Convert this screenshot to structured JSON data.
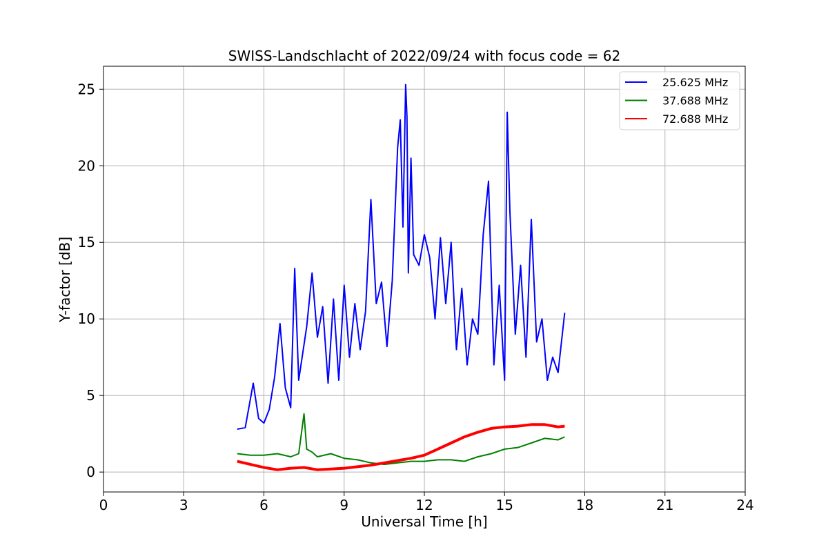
{
  "chart_data": {
    "type": "line",
    "title": "SWISS-Landschlacht of 2022/09/24 with focus code = 62",
    "xlabel": "Universal Time [h]",
    "ylabel": "Y-factor [dB]",
    "xlim": [
      0,
      24
    ],
    "ylim": [
      -1.3,
      26.5
    ],
    "xticks": [
      0,
      3,
      6,
      9,
      12,
      15,
      18,
      21,
      24
    ],
    "yticks": [
      0,
      5,
      10,
      15,
      20,
      25
    ],
    "grid": true,
    "legend_position": "top-right",
    "series": [
      {
        "name": "25.625 MHz",
        "color": "#0000ff",
        "x": [
          5.0,
          5.3,
          5.6,
          5.8,
          6.0,
          6.2,
          6.4,
          6.6,
          6.8,
          7.0,
          7.15,
          7.3,
          7.6,
          7.8,
          8.0,
          8.2,
          8.4,
          8.6,
          8.8,
          9.0,
          9.2,
          9.4,
          9.6,
          9.8,
          10.0,
          10.2,
          10.4,
          10.6,
          10.8,
          11.0,
          11.1,
          11.2,
          11.3,
          11.35,
          11.4,
          11.5,
          11.6,
          11.8,
          12.0,
          12.2,
          12.4,
          12.6,
          12.8,
          13.0,
          13.2,
          13.4,
          13.6,
          13.8,
          14.0,
          14.2,
          14.4,
          14.6,
          14.8,
          15.0,
          15.1,
          15.2,
          15.4,
          15.6,
          15.8,
          16.0,
          16.2,
          16.4,
          16.6,
          16.8,
          17.0,
          17.25
        ],
        "y": [
          2.8,
          2.9,
          5.8,
          3.5,
          3.2,
          4.1,
          6.2,
          9.7,
          5.5,
          4.2,
          13.3,
          6.0,
          9.5,
          13.0,
          8.8,
          10.8,
          5.8,
          11.3,
          6.0,
          12.2,
          7.5,
          11.0,
          8.0,
          10.5,
          17.8,
          11.0,
          12.4,
          8.2,
          12.5,
          21.2,
          23.0,
          16.0,
          25.3,
          23.2,
          13.0,
          20.5,
          14.2,
          13.5,
          15.5,
          14.0,
          10.0,
          15.3,
          11.0,
          15.0,
          8.0,
          12.0,
          7.0,
          10.0,
          9.0,
          15.5,
          19.0,
          7.0,
          12.2,
          6.0,
          23.5,
          17.0,
          9.0,
          13.5,
          7.5,
          16.5,
          8.5,
          10.0,
          6.0,
          7.5,
          6.5,
          10.4
        ]
      },
      {
        "name": "37.688 MHz",
        "color": "#008000",
        "x": [
          5.0,
          5.5,
          6.0,
          6.5,
          7.0,
          7.3,
          7.5,
          7.6,
          7.8,
          8.0,
          8.5,
          9.0,
          9.5,
          10.0,
          10.5,
          11.0,
          11.5,
          12.0,
          12.5,
          13.0,
          13.5,
          14.0,
          14.5,
          15.0,
          15.5,
          16.0,
          16.5,
          17.0,
          17.25
        ],
        "y": [
          1.2,
          1.1,
          1.1,
          1.2,
          1.0,
          1.2,
          3.8,
          1.5,
          1.3,
          1.0,
          1.2,
          0.9,
          0.8,
          0.6,
          0.5,
          0.6,
          0.7,
          0.7,
          0.8,
          0.8,
          0.7,
          1.0,
          1.2,
          1.5,
          1.6,
          1.9,
          2.2,
          2.1,
          2.3
        ]
      },
      {
        "name": "72.688 MHz",
        "color": "#ff0000",
        "x": [
          5.0,
          5.5,
          6.0,
          6.5,
          7.0,
          7.5,
          8.0,
          8.5,
          9.0,
          9.5,
          10.0,
          10.5,
          11.0,
          11.5,
          12.0,
          12.5,
          13.0,
          13.5,
          14.0,
          14.5,
          15.0,
          15.5,
          16.0,
          16.5,
          17.0,
          17.25
        ],
        "y": [
          0.7,
          0.5,
          0.3,
          0.15,
          0.25,
          0.3,
          0.15,
          0.2,
          0.25,
          0.35,
          0.45,
          0.6,
          0.75,
          0.9,
          1.1,
          1.5,
          1.9,
          2.3,
          2.6,
          2.85,
          2.95,
          3.0,
          3.1,
          3.1,
          2.95,
          3.0
        ]
      }
    ]
  }
}
